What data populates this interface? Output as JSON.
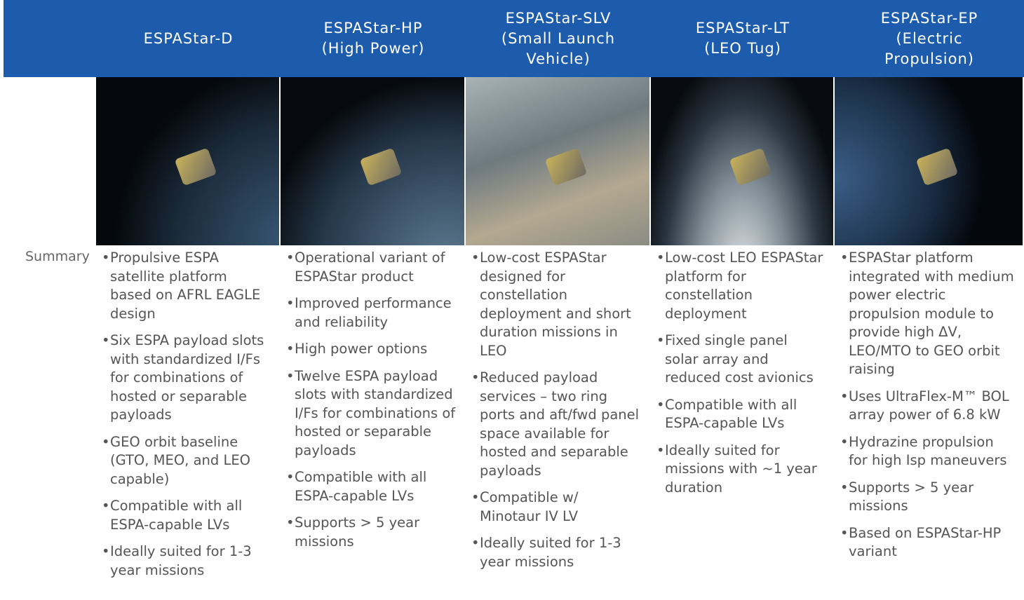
{
  "table": {
    "row_label": "Summary",
    "columns": [
      {
        "title_lines": [
          "ESPAStar-D"
        ],
        "bullets": [
          "Propulsive ESPA satellite platform based on AFRL EAGLE design",
          "Six ESPA payload slots with standardized I/Fs for combinations of hosted or separable payloads",
          "GEO orbit baseline (GTO, MEO, and LEO capable)",
          "Compatible with all ESPA-capable LVs",
          "Ideally suited for 1-3 year missions"
        ]
      },
      {
        "title_lines": [
          "ESPAStar-HP",
          "(High Power)"
        ],
        "bullets": [
          "Operational variant of ESPAStar product",
          "Improved performance and reliability",
          "High power options",
          "Twelve ESPA payload slots with standardized I/Fs for combinations of hosted or separable payloads",
          "Compatible with all ESPA-capable LVs",
          "Supports > 5 year missions"
        ]
      },
      {
        "title_lines": [
          "ESPAStar-SLV",
          "(Small Launch",
          "Vehicle)"
        ],
        "bullets": [
          "Low-cost ESPAStar designed for constellation deployment and short duration missions in LEO",
          "Reduced payload services – two ring ports and aft/fwd panel space available for hosted and separable payloads",
          "Compatible w/ Minotaur IV LV",
          "Ideally suited for 1-3 year missions"
        ]
      },
      {
        "title_lines": [
          "ESPAStar-LT",
          "(LEO Tug)"
        ],
        "bullets": [
          "Low-cost LEO ESPAStar platform for constellation deployment",
          "Fixed single panel solar array and reduced cost avionics",
          "Compatible with all ESPA-capable LVs",
          "Ideally suited for missions with ~1 year duration"
        ]
      },
      {
        "title_lines": [
          "ESPAStar-EP",
          "(Electric",
          "Propulsion)"
        ],
        "bullets": [
          "ESPAStar platform integrated with medium power electric propulsion module to provide high ΔV, LEO/MTO to GEO orbit raising",
          "Uses UltraFlex-M™ BOL array power of 6.8 kW",
          "Hydrazine propulsion for high Isp maneuvers",
          "Supports > 5 year missions",
          "Based on ESPAStar-HP variant"
        ]
      }
    ]
  }
}
